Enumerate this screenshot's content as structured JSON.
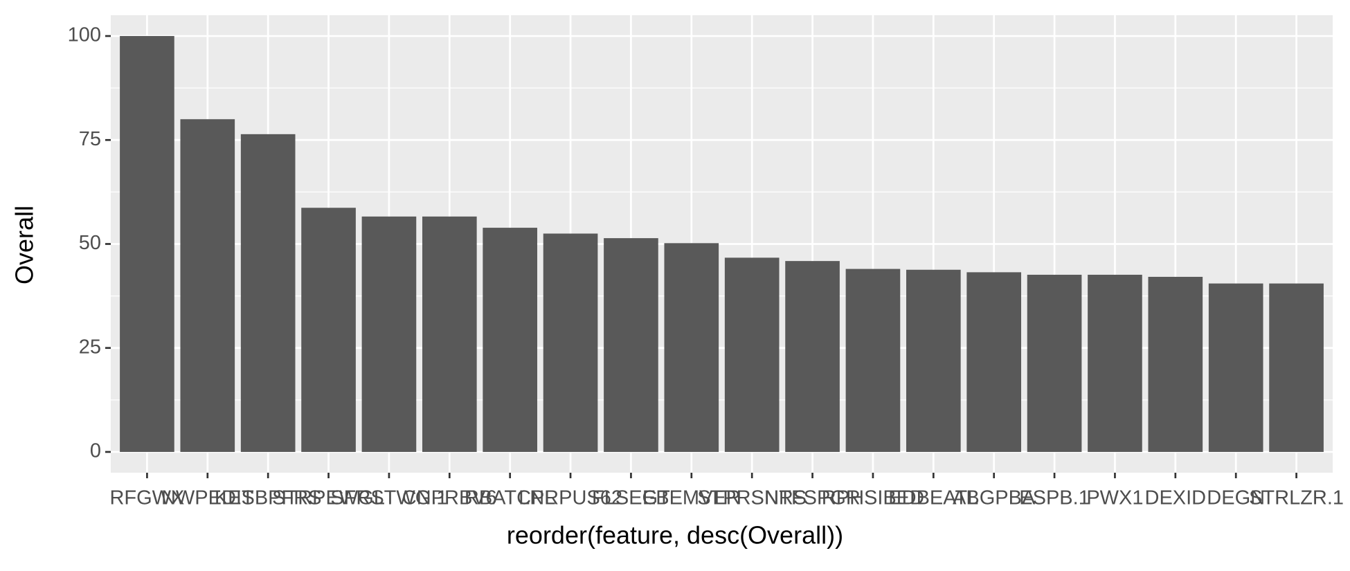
{
  "chart_data": {
    "type": "bar",
    "x_label": "reorder(feature, desc(Overall))",
    "y_label": "Overall",
    "categories": [
      "RFGWX",
      "NWPEDIT",
      "KESBPFRS",
      "STRPEWGL",
      "SFRSTWG.1",
      "CNPRBV6",
      "RBATCPL",
      "LNRPUS62",
      "FLSEGT",
      "EBEMVER",
      "STPRSNRS",
      "NTFSPGR",
      "RPHSIBED",
      "EDBEATL",
      "ABGPBA",
      "ESPB.1",
      "PWX1",
      "DEXID",
      "DEGN",
      "STRLZR.1"
    ],
    "values": [
      100,
      80,
      76.4,
      58.7,
      56.6,
      56.6,
      53.9,
      52.5,
      51.4,
      50.2,
      46.7,
      45.9,
      44.0,
      43.8,
      43.2,
      42.6,
      42.6,
      42.1,
      40.5,
      40.5
    ],
    "color": "#595959",
    "ylim": [
      -5,
      105
    ],
    "yticks": [
      0,
      25,
      50,
      75,
      100
    ],
    "grid": true,
    "minor_grid": true
  }
}
